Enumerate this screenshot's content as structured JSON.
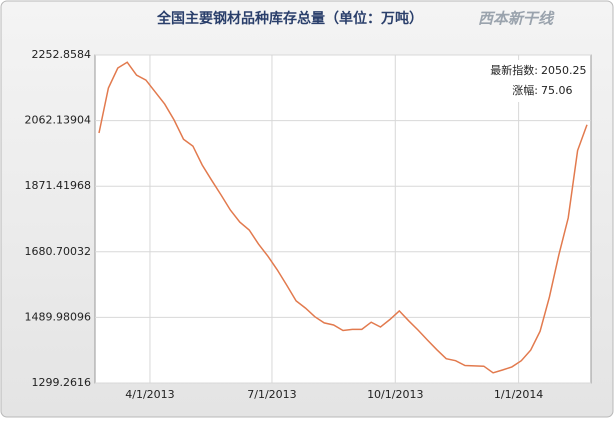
{
  "chart_data": {
    "type": "line",
    "title": "全国主要钢材品种库存总量（单位：万吨）",
    "logo": "西本新干线",
    "annotations": [
      {
        "label": "最新指数:",
        "value": 2050.25
      },
      {
        "label": "涨幅:",
        "value": 75.06
      }
    ],
    "x": [
      "2013-02-22",
      "2013-03-01",
      "2013-03-08",
      "2013-03-15",
      "2013-03-22",
      "2013-03-29",
      "2013-04-05",
      "2013-04-12",
      "2013-04-19",
      "2013-04-26",
      "2013-05-03",
      "2013-05-10",
      "2013-05-17",
      "2013-05-24",
      "2013-05-31",
      "2013-06-07",
      "2013-06-14",
      "2013-06-21",
      "2013-06-28",
      "2013-07-05",
      "2013-07-12",
      "2013-07-19",
      "2013-07-26",
      "2013-08-02",
      "2013-08-09",
      "2013-08-16",
      "2013-08-23",
      "2013-08-30",
      "2013-09-06",
      "2013-09-13",
      "2013-09-20",
      "2013-09-27",
      "2013-10-04",
      "2013-10-11",
      "2013-10-18",
      "2013-10-25",
      "2013-11-01",
      "2013-11-08",
      "2013-11-15",
      "2013-11-22",
      "2013-11-29",
      "2013-12-06",
      "2013-12-13",
      "2013-12-20",
      "2013-12-27",
      "2014-01-03",
      "2014-01-10",
      "2014-01-17",
      "2014-01-24",
      "2014-01-31",
      "2014-02-07",
      "2014-02-14",
      "2014-02-21"
    ],
    "series": [
      {
        "color": "#e27a4e",
        "values": [
          2026,
          2157,
          2215,
          2232,
          2194,
          2180,
          2145,
          2110,
          2064,
          2008,
          1988,
          1933,
          1889,
          1846,
          1802,
          1767,
          1744,
          1703,
          1668,
          1628,
          1584,
          1538,
          1517,
          1492,
          1474,
          1468,
          1452,
          1455,
          1455,
          1476,
          1462,
          1484,
          1509,
          1480,
          1453,
          1424,
          1396,
          1370,
          1364,
          1350,
          1349,
          1348,
          1329,
          1337,
          1346,
          1364,
          1395,
          1450,
          1549,
          1671,
          1779,
          1975.19,
          2050.25
        ]
      }
    ],
    "xlim": [
      "2013-02-19",
      "2014-02-24"
    ],
    "xticks": [
      {
        "value": "2013-04-01",
        "label": "4/1/2013"
      },
      {
        "value": "2013-07-01",
        "label": "7/1/2013"
      },
      {
        "value": "2013-10-01",
        "label": "10/1/2013"
      },
      {
        "value": "2014-01-01",
        "label": "1/1/2014"
      }
    ],
    "ylim": [
      1299.2616,
      2252.8584
    ],
    "yticks": [
      1299.2616,
      1489.98096,
      1680.70032,
      1871.41968,
      2062.13904,
      2252.8584
    ],
    "grid": true
  }
}
